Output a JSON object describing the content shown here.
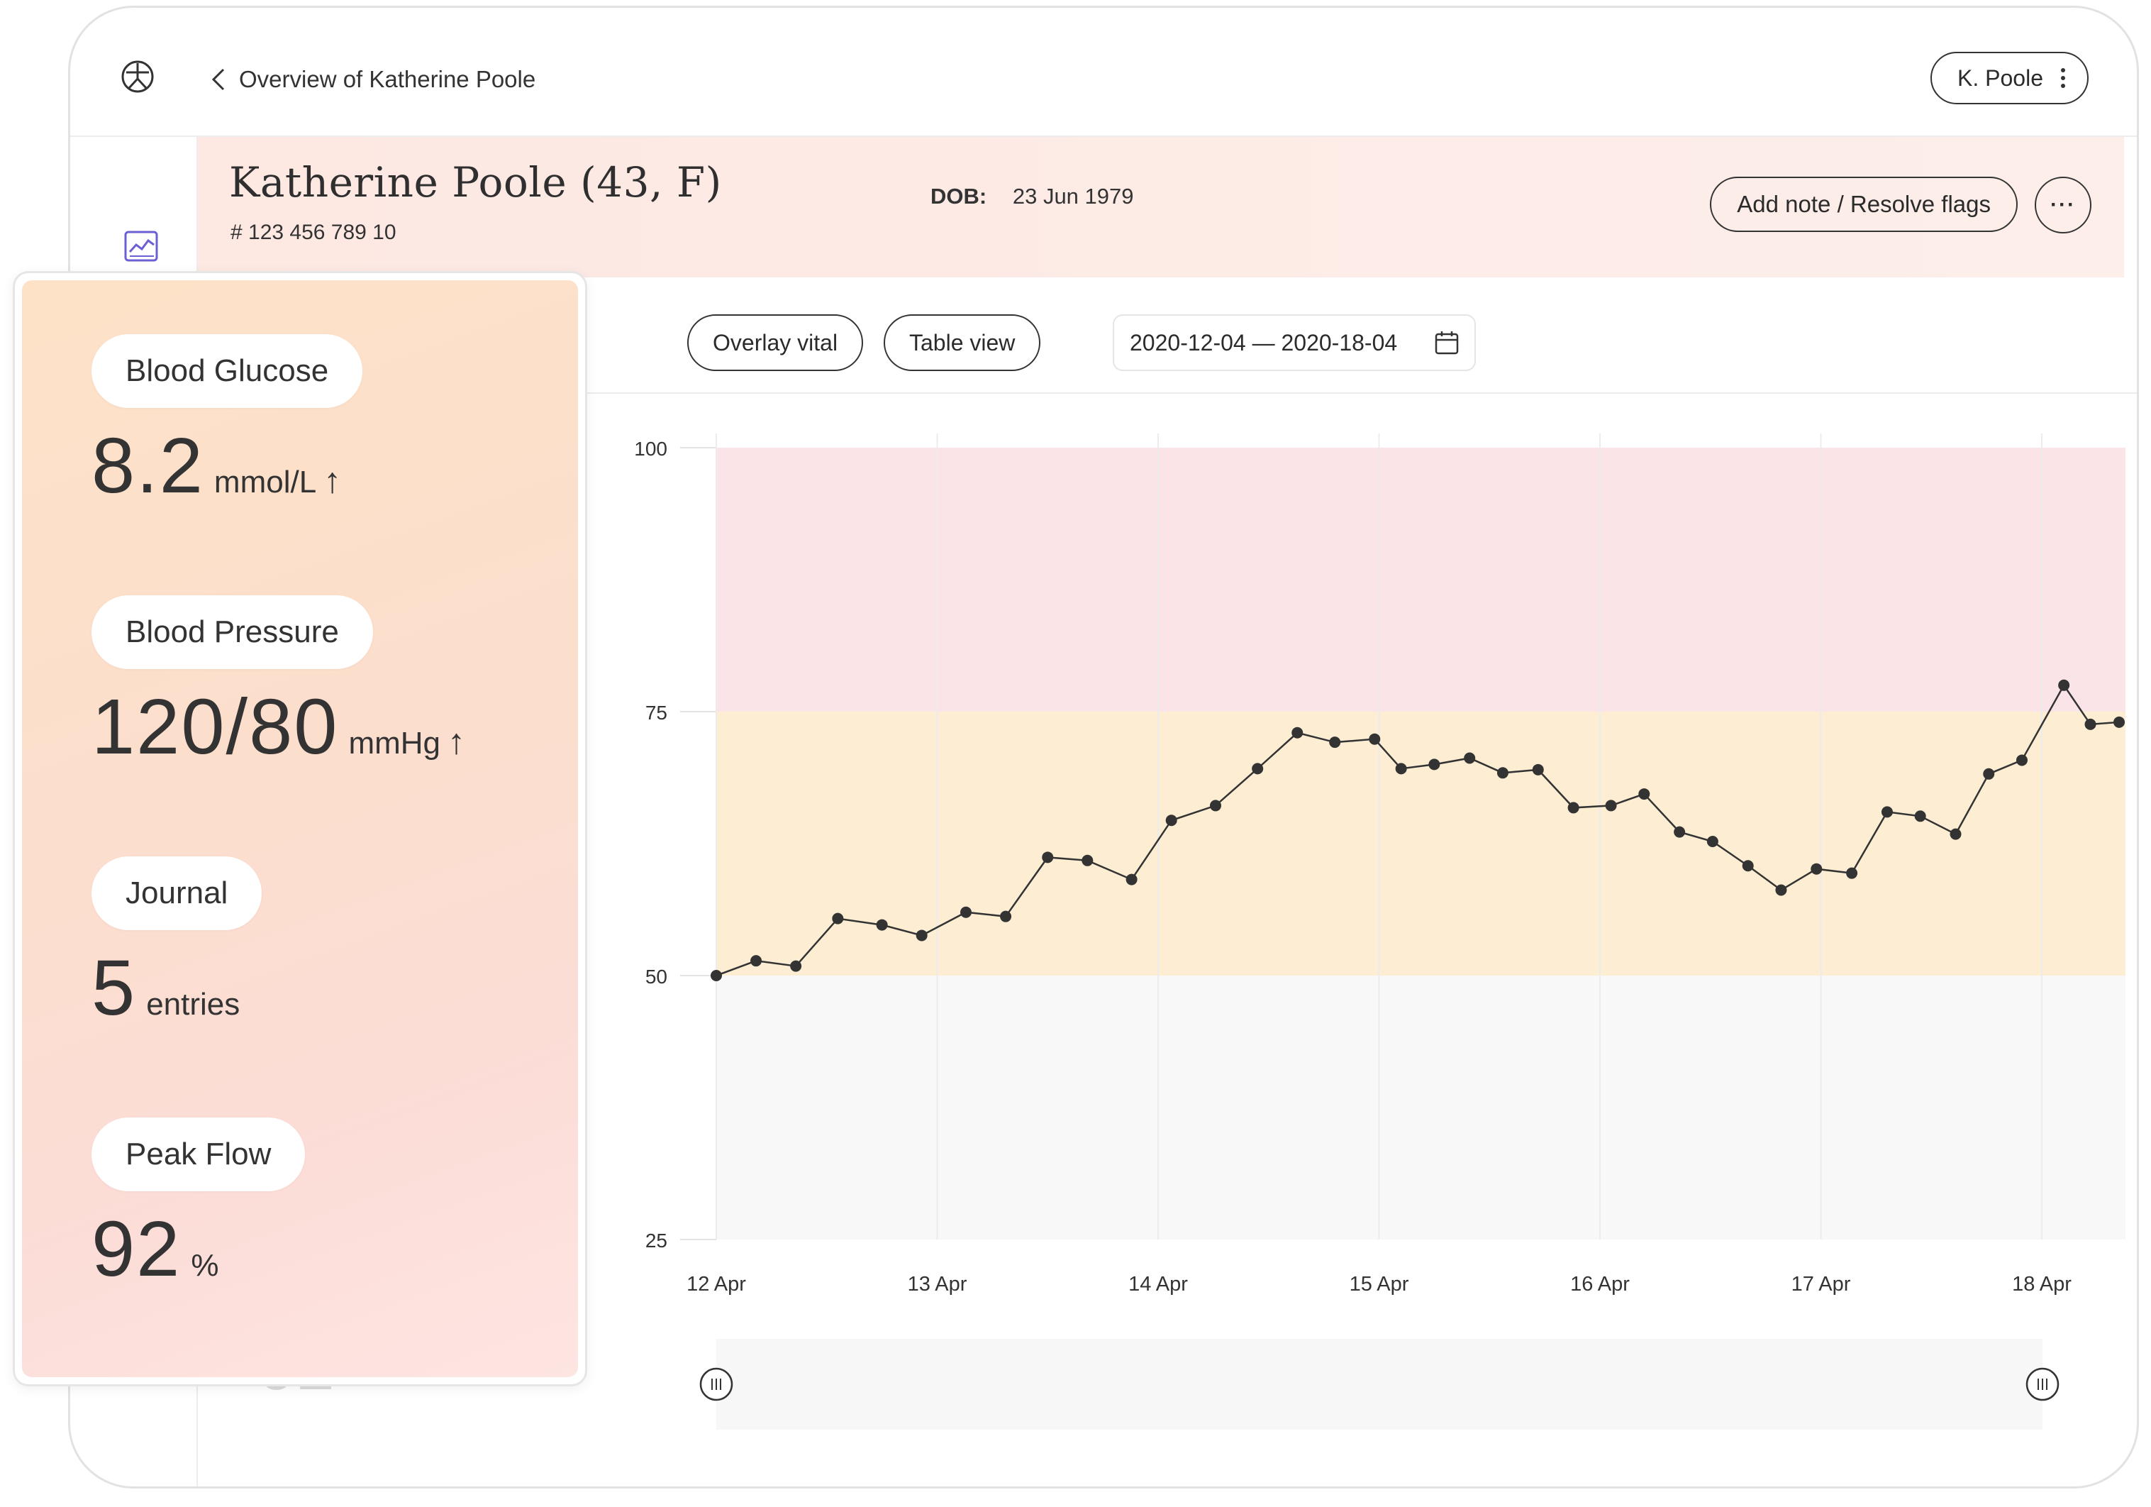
{
  "header": {
    "back_label": "Overview of Katherine Poole",
    "user_button_label": "K. Poole"
  },
  "patient": {
    "name": "Katherine Poole (43, F)",
    "id": "# 123 456 789 10",
    "dob_label": "DOB:",
    "dob_value": "23 Jun 1979",
    "note_button": "Add note / Resolve flags",
    "more_button": "···"
  },
  "toolbar": {
    "overlay_vital": "Overlay vital",
    "table_view": "Table view",
    "date_range": "2020-12-04 — 2020-18-04"
  },
  "vitals_overlay": [
    {
      "label": "Blood Glucose",
      "value": "8.2",
      "unit": "mmol/L",
      "trend": "up"
    },
    {
      "label": "Blood Pressure",
      "value": "120/80",
      "unit": "mmHg",
      "trend": "up"
    },
    {
      "label": "Journal",
      "value": "5",
      "unit": "entries",
      "trend": ""
    },
    {
      "label": "Peak Flow",
      "value": "92",
      "unit": "%",
      "trend": ""
    }
  ],
  "trend_arrow": "↑",
  "colors": {
    "high_band": "#fbe4e8",
    "target_band": "#fcedd3",
    "low_band": "#f8f8f8",
    "line": "#333333"
  },
  "chart_data": {
    "type": "line",
    "ylim": [
      25,
      100
    ],
    "yticks": [
      "100",
      "75",
      "50",
      "25"
    ],
    "ytick_values": [
      100,
      75,
      50,
      25
    ],
    "xticks": [
      "12 Apr",
      "13 Apr",
      "14 Apr",
      "15 Apr",
      "16 Apr",
      "17 Apr",
      "18 Apr"
    ],
    "xlim": [
      0,
      6.35
    ],
    "bands": [
      {
        "from": 75,
        "to": 100,
        "color": "#fbe4e8"
      },
      {
        "from": 50,
        "to": 75,
        "color": "#fcedd3"
      },
      {
        "from": 25,
        "to": 50,
        "color": "#f8f8f8"
      }
    ],
    "x": [
      0.0,
      0.18,
      0.36,
      0.55,
      0.75,
      0.93,
      1.13,
      1.31,
      1.5,
      1.68,
      1.88,
      2.06,
      2.26,
      2.45,
      2.63,
      2.8,
      2.98,
      3.1,
      3.25,
      3.41,
      3.56,
      3.72,
      3.88,
      4.05,
      4.2,
      4.36,
      4.51,
      4.67,
      4.82,
      4.98,
      5.14,
      5.3,
      5.45,
      5.61,
      5.76,
      5.91,
      6.1,
      6.22,
      6.35
    ],
    "values": [
      50.0,
      51.4,
      50.9,
      55.4,
      54.8,
      53.8,
      56.0,
      55.6,
      61.2,
      60.9,
      59.1,
      64.7,
      66.1,
      69.6,
      73.0,
      72.1,
      72.4,
      69.6,
      70.0,
      70.6,
      69.2,
      69.5,
      65.9,
      66.1,
      67.2,
      63.6,
      62.7,
      60.4,
      58.1,
      60.1,
      59.7,
      65.5,
      65.1,
      63.4,
      69.1,
      70.4,
      77.5,
      73.8,
      74.0
    ]
  }
}
